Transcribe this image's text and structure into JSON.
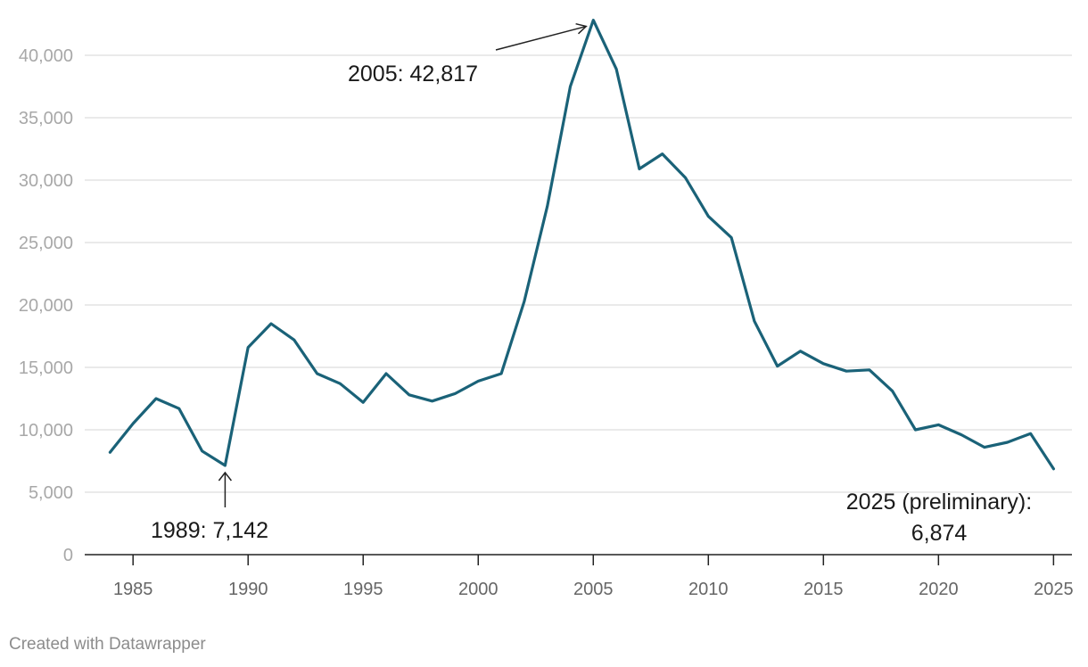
{
  "chart_data": {
    "type": "line",
    "x": [
      1984,
      1985,
      1986,
      1987,
      1988,
      1989,
      1990,
      1991,
      1992,
      1993,
      1994,
      1995,
      1996,
      1997,
      1998,
      1999,
      2000,
      2001,
      2002,
      2003,
      2004,
      2005,
      2006,
      2007,
      2008,
      2009,
      2010,
      2011,
      2012,
      2013,
      2014,
      2015,
      2016,
      2017,
      2018,
      2019,
      2020,
      2021,
      2022,
      2023,
      2024,
      2025
    ],
    "series": [
      {
        "values": [
          8200,
          10500,
          12500,
          11700,
          8300,
          7142,
          16600,
          18500,
          17200,
          14500,
          13700,
          12200,
          14500,
          12800,
          12300,
          12900,
          13900,
          14500,
          20300,
          27900,
          37500,
          42817,
          38900,
          30900,
          32100,
          30200,
          27100,
          25400,
          18700,
          15100,
          16300,
          15300,
          14700,
          14800,
          13100,
          10000,
          10400,
          9600,
          8600,
          9000,
          9700,
          6874
        ]
      }
    ],
    "yticks": [
      "0",
      "5,000",
      "10,000",
      "15,000",
      "20,000",
      "25,000",
      "30,000",
      "35,000",
      "40,000"
    ],
    "xticks": [
      "1985",
      "1990",
      "1995",
      "2000",
      "2005",
      "2010",
      "2015",
      "2020",
      "2025"
    ],
    "ylim": [
      0,
      43000
    ],
    "xlim": [
      1982.9,
      2025.8
    ],
    "grid": true,
    "line_color": "#1a6278",
    "annotations": {
      "a1989": {
        "text": "1989: 7,142",
        "x": 1989,
        "y": 7142
      },
      "a2005": {
        "text": "2005: 42,817",
        "x": 2005,
        "y": 42817
      },
      "a2025_line1": "2025 (preliminary):",
      "a2025_line2": "6,874"
    }
  },
  "footer": "Created with Datawrapper"
}
